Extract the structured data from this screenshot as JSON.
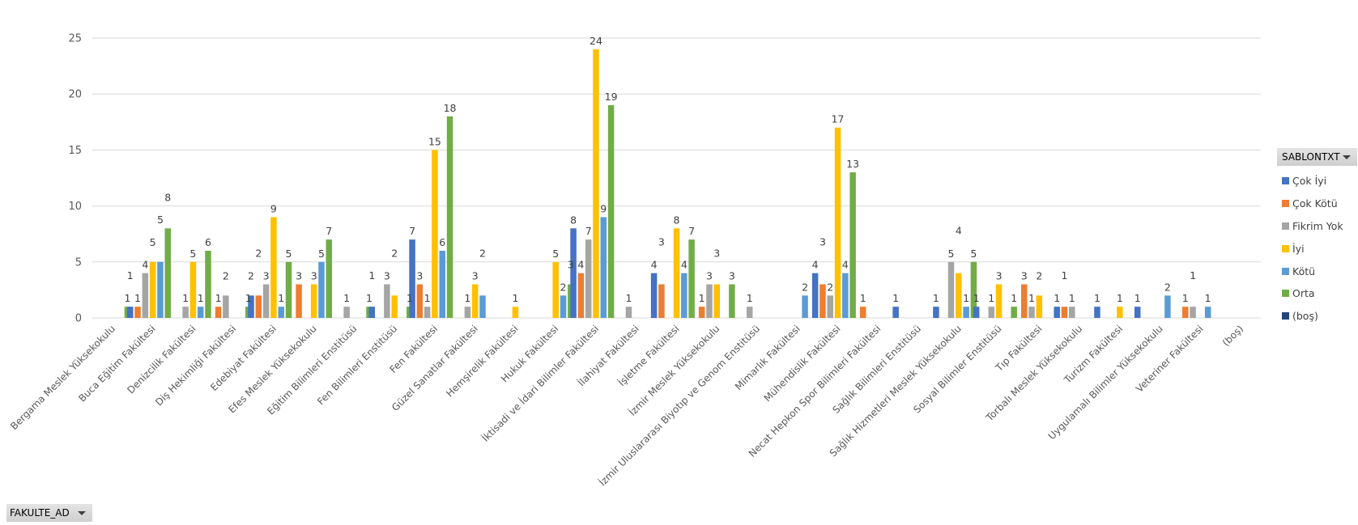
{
  "chart_data": {
    "type": "bar",
    "title": "",
    "xlabel": "",
    "ylabel": "",
    "ylim": [
      0,
      25
    ],
    "yticks": [
      0,
      5,
      10,
      15,
      20,
      25
    ],
    "grid": true,
    "legend_position": "right",
    "categories": [
      "Bergama Meslek Yüksekokulu",
      "Buca Eğitim Fakültesi",
      "Denizcilik Fakültesi",
      "Diş Hekimliği Fakültesi",
      "Edebiyat Fakültesi",
      "Efes Meslek Yüksekokulu",
      "Eğitim Bilimleri Enstitüsü",
      "Fen Bilimleri Enstitüsü",
      "Fen Fakültesi",
      "Güzel Sanatlar Fakültesi",
      "Hemşirelik Fakültesi",
      "Hukuk Fakültesi",
      "İktisadi ve İdari Bilimler Fakültesi",
      "İlahiyat Fakültesi",
      "İşletme Fakültesi",
      "İzmir Meslek Yüksekokulu",
      "İzmir Uluslararası Biyotıp ve Genom Enstitüsü",
      "Mimarlık Fakültesi",
      "Mühendislik Fakültesi",
      "Necat Hepkon Spor Bilimleri Fakültesi",
      "Sağlık Bilimleri Enstitüsü",
      "Sağlık Hizmetleri Meslek Yüksekokulu",
      "Sosyal Bilimler Enstitüsü",
      "Tıp Fakültesi",
      "Torbalı Meslek Yüksekokulu",
      "Turizm Fakültesi",
      "Uygulamalı Bilimler Yüksekokulu",
      "Veteriner Fakültesi",
      "(boş)"
    ],
    "series": [
      {
        "name": "Çok İyi",
        "color": "#4472c4",
        "values": [
          null,
          1,
          null,
          null,
          2,
          null,
          null,
          1,
          7,
          null,
          null,
          null,
          8,
          null,
          4,
          null,
          null,
          null,
          4,
          null,
          1,
          1,
          1,
          null,
          1,
          1,
          1,
          null,
          null
        ]
      },
      {
        "name": "Çok Kötü",
        "color": "#ed7d31",
        "values": [
          null,
          1,
          null,
          1,
          2,
          3,
          null,
          null,
          3,
          null,
          null,
          null,
          4,
          null,
          3,
          1,
          null,
          null,
          3,
          1,
          null,
          null,
          null,
          3,
          1,
          null,
          null,
          1,
          null
        ]
      },
      {
        "name": "Fikrim Yok",
        "color": "#a5a5a5",
        "values": [
          null,
          4,
          1,
          2,
          3,
          null,
          1,
          3,
          1,
          1,
          null,
          null,
          7,
          1,
          null,
          3,
          1,
          null,
          2,
          null,
          null,
          5,
          1,
          1,
          1,
          null,
          null,
          1,
          null
        ]
      },
      {
        "name": "İyi",
        "color": "#ffc000",
        "values": [
          null,
          5,
          5,
          null,
          9,
          3,
          null,
          2,
          15,
          3,
          1,
          5,
          24,
          null,
          8,
          3,
          null,
          null,
          17,
          null,
          null,
          4,
          3,
          2,
          null,
          1,
          null,
          null,
          null
        ]
      },
      {
        "name": "Kötü",
        "color": "#5b9bd5",
        "values": [
          null,
          5,
          1,
          null,
          1,
          5,
          null,
          null,
          6,
          2,
          null,
          2,
          9,
          null,
          4,
          null,
          null,
          2,
          4,
          null,
          null,
          1,
          null,
          null,
          null,
          null,
          2,
          1,
          null
        ]
      },
      {
        "name": "Orta",
        "color": "#70ad47",
        "values": [
          1,
          8,
          6,
          1,
          5,
          7,
          1,
          1,
          18,
          null,
          null,
          3,
          19,
          null,
          7,
          3,
          null,
          null,
          13,
          null,
          null,
          5,
          1,
          null,
          null,
          null,
          null,
          null,
          null
        ]
      },
      {
        "name": "(boş)",
        "color": "#264478",
        "values": [
          null,
          null,
          null,
          null,
          null,
          null,
          null,
          null,
          null,
          null,
          null,
          null,
          null,
          null,
          null,
          null,
          null,
          null,
          null,
          null,
          null,
          null,
          null,
          null,
          null,
          null,
          null,
          null,
          null
        ]
      }
    ]
  },
  "legend": {
    "field_label": "SABLONTXT"
  },
  "axis_field": {
    "field_label": "FAKULTE_AD"
  }
}
